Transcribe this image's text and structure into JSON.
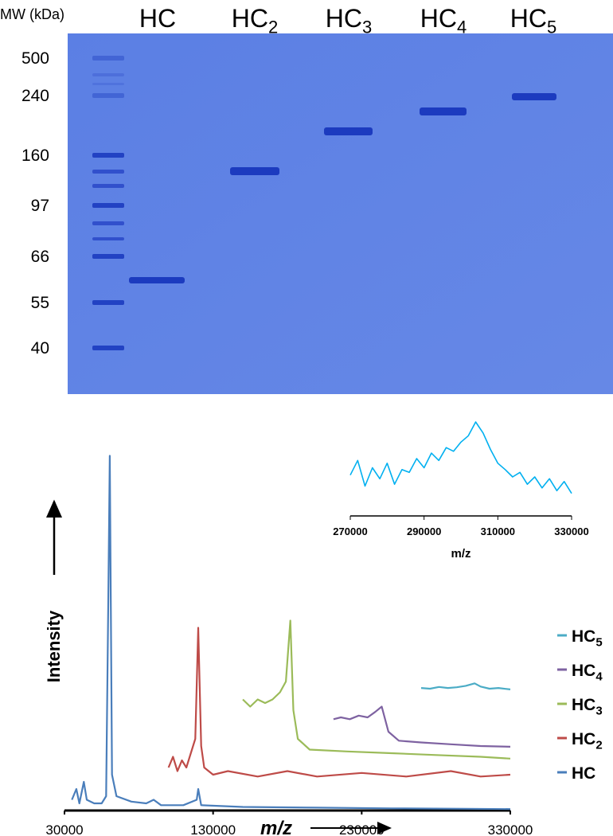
{
  "gel": {
    "ylabel": "MW (kDa)",
    "lanes": [
      "HC",
      "HC2",
      "HC3",
      "HC4",
      "HC5"
    ],
    "markers": [
      500,
      240,
      160,
      97,
      66,
      55,
      40
    ]
  },
  "chart_data": [
    {
      "type": "line",
      "xlabel": "m/z",
      "ylabel": "Intensity",
      "xlim": [
        30000,
        330000
      ],
      "ylim": [
        0,
        100
      ],
      "xticks": [
        30000,
        130000,
        230000,
        330000
      ],
      "series": [
        {
          "name": "HC",
          "color": "#4a7ebb",
          "x": [
            35000,
            38000,
            40000,
            43000,
            45000,
            50000,
            55000,
            58000,
            59500,
            60500,
            62000,
            65000,
            75000,
            85000,
            90000,
            95000,
            110000,
            119000,
            120000,
            122000,
            150000,
            200000,
            250000,
            300000,
            330000
          ],
          "values": [
            3,
            6,
            2,
            8,
            3,
            2,
            2,
            4,
            60,
            99,
            10,
            4,
            2.5,
            2,
            3,
            1.5,
            1.5,
            3,
            6,
            1.5,
            1,
            0.8,
            0.6,
            0.5,
            0.4
          ]
        },
        {
          "name": "HC2",
          "color": "#be4b48",
          "x": [
            100000,
            103000,
            106000,
            109000,
            112000,
            115000,
            118000,
            120000,
            122000,
            124000,
            130000,
            140000,
            160000,
            180000,
            200000,
            230000,
            260000,
            290000,
            310000,
            330000
          ],
          "values": [
            12,
            15,
            11,
            14,
            12,
            16,
            20,
            51,
            18,
            12,
            10,
            11,
            9.5,
            11,
            9.5,
            10.5,
            9.5,
            11,
            9.5,
            10
          ]
        },
        {
          "name": "HC3",
          "color": "#9bbb59",
          "x": [
            150000,
            155000,
            160000,
            165000,
            170000,
            175000,
            179000,
            182000,
            184000,
            187000,
            195000,
            220000,
            250000,
            280000,
            310000,
            330000
          ],
          "values": [
            31,
            29,
            31,
            30,
            31,
            33,
            36,
            53,
            28,
            20,
            17,
            16.5,
            16,
            15.5,
            15,
            14.5
          ]
        },
        {
          "name": "HC4",
          "color": "#7e62a1",
          "x": [
            211000,
            216000,
            222000,
            228000,
            234000,
            239000,
            243500,
            248000,
            255000,
            270000,
            290000,
            310000,
            330000
          ],
          "values": [
            25.5,
            26,
            25.5,
            26.5,
            26,
            27.5,
            29,
            22,
            19.5,
            19,
            18.5,
            18,
            17.8
          ]
        },
        {
          "name": "HC5",
          "color": "#4bacc6",
          "x": [
            270000,
            276000,
            282000,
            288000,
            294000,
            300000,
            306000,
            310000,
            316000,
            322000,
            330000
          ],
          "values": [
            34.2,
            34,
            34.5,
            34.2,
            34.4,
            34.8,
            35.5,
            34.6,
            34,
            34.2,
            33.8
          ]
        }
      ]
    },
    {
      "type": "line",
      "xlabel": "m/z",
      "xlim": [
        270000,
        330000
      ],
      "ylim": [
        0,
        100
      ],
      "xticks": [
        270000,
        290000,
        310000,
        330000
      ],
      "series": [
        {
          "color": "#00b0f0",
          "x": [
            270000,
            272000,
            274000,
            276000,
            278000,
            280000,
            282000,
            284000,
            286000,
            288000,
            290000,
            292000,
            294000,
            296000,
            298000,
            300000,
            302000,
            304000,
            306000,
            308000,
            310000,
            312000,
            314000,
            316000,
            318000,
            320000,
            322000,
            324000,
            326000,
            328000,
            330000
          ],
          "values": [
            42,
            58,
            30,
            50,
            38,
            55,
            32,
            48,
            45,
            60,
            50,
            66,
            58,
            72,
            68,
            78,
            85,
            100,
            88,
            70,
            55,
            48,
            40,
            45,
            32,
            40,
            28,
            38,
            25,
            35,
            22
          ]
        }
      ]
    }
  ]
}
